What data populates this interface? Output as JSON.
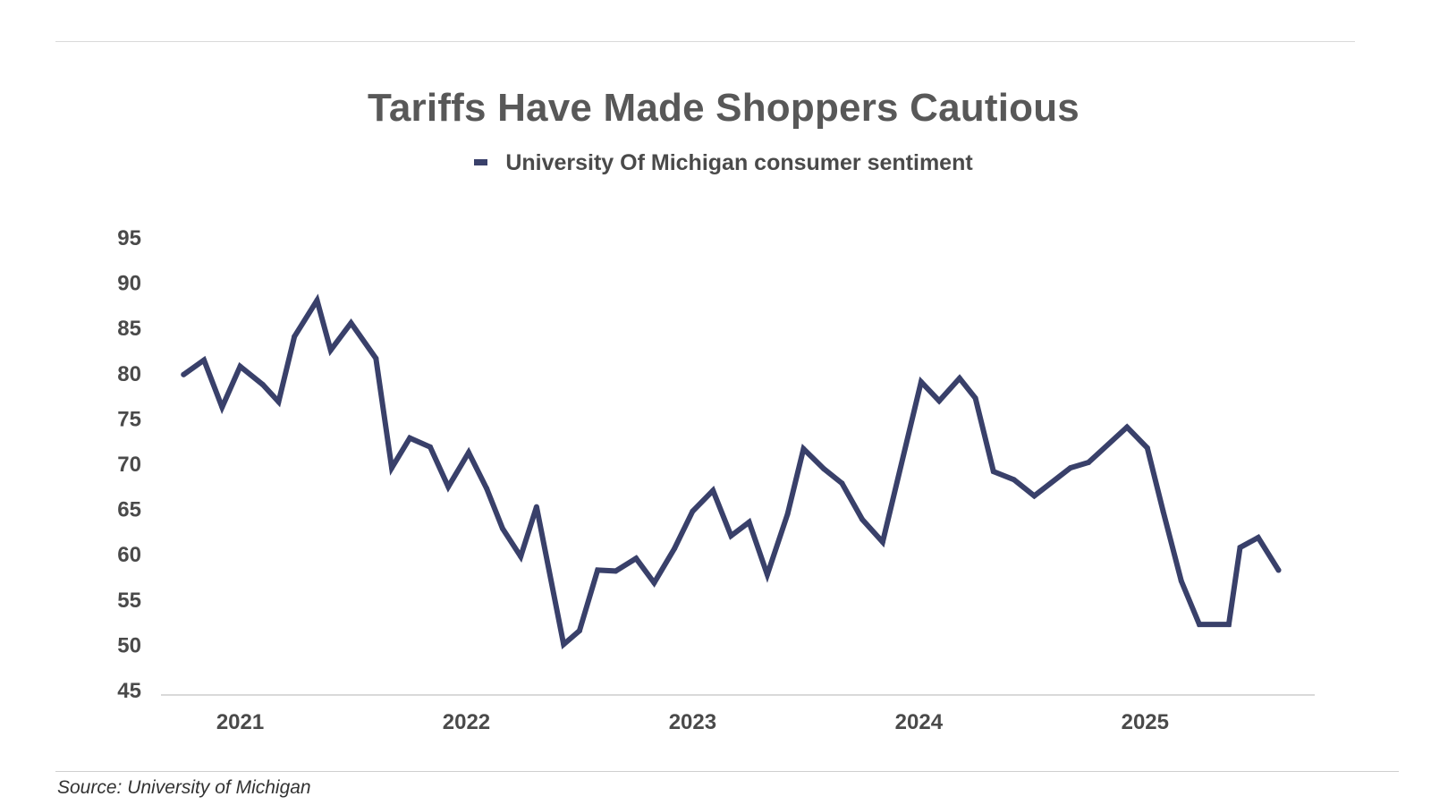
{
  "chart_data": {
    "type": "line",
    "title": "Tariffs Have Made Shoppers Cautious",
    "source": "Source: University of Michigan",
    "legend_position": "top-center",
    "grid": false,
    "line_color": "#39406a",
    "axis_line_color": "#d9d9d9",
    "ylim": [
      45,
      95
    ],
    "y_ticks": [
      "95",
      "90",
      "85",
      "80",
      "75",
      "70",
      "65",
      "60",
      "55",
      "50",
      "45"
    ],
    "x_ticks": [
      "2021",
      "2022",
      "2023",
      "2024",
      "2025"
    ],
    "xlim": [
      2020.65,
      2025.75
    ],
    "x_tick_values": [
      2021.0,
      2022.0,
      2023.0,
      2024.0,
      2025.0
    ],
    "series": [
      {
        "name": "University Of Michigan consumer sentiment",
        "x": [
          2020.75,
          2020.84,
          2020.92,
          2021.0,
          2021.1,
          2021.17,
          2021.24,
          2021.34,
          2021.4,
          2021.49,
          2021.6,
          2021.67,
          2021.75,
          2021.84,
          2021.92,
          2022.01,
          2022.09,
          2022.16,
          2022.24,
          2022.31,
          2022.43,
          2022.5,
          2022.58,
          2022.66,
          2022.75,
          2022.83,
          2022.92,
          2023.0,
          2023.09,
          2023.17,
          2023.25,
          2023.33,
          2023.42,
          2023.49,
          2023.58,
          2023.66,
          2023.75,
          2023.84,
          2024.01,
          2024.09,
          2024.18,
          2024.25,
          2024.33,
          2024.42,
          2024.51,
          2024.67,
          2024.75,
          2024.92,
          2025.01,
          2025.08,
          2025.16,
          2025.24,
          2025.37,
          2025.42,
          2025.5,
          2025.59
        ],
        "values": [
          79.8,
          81.4,
          76.2,
          80.7,
          78.7,
          76.8,
          84.0,
          88.0,
          82.5,
          85.5,
          81.6,
          69.5,
          72.8,
          71.8,
          67.4,
          71.2,
          67.2,
          62.8,
          59.7,
          65.2,
          50.0,
          51.5,
          58.2,
          58.1,
          59.5,
          56.8,
          60.6,
          64.7,
          67.0,
          62.0,
          63.5,
          57.7,
          64.4,
          71.6,
          69.4,
          67.8,
          63.8,
          61.3,
          79.0,
          76.9,
          79.4,
          77.2,
          69.1,
          68.2,
          66.4,
          69.5,
          70.1,
          74.0,
          71.7,
          64.7,
          57.0,
          52.2,
          52.2,
          60.7,
          61.8,
          58.2
        ]
      }
    ]
  }
}
